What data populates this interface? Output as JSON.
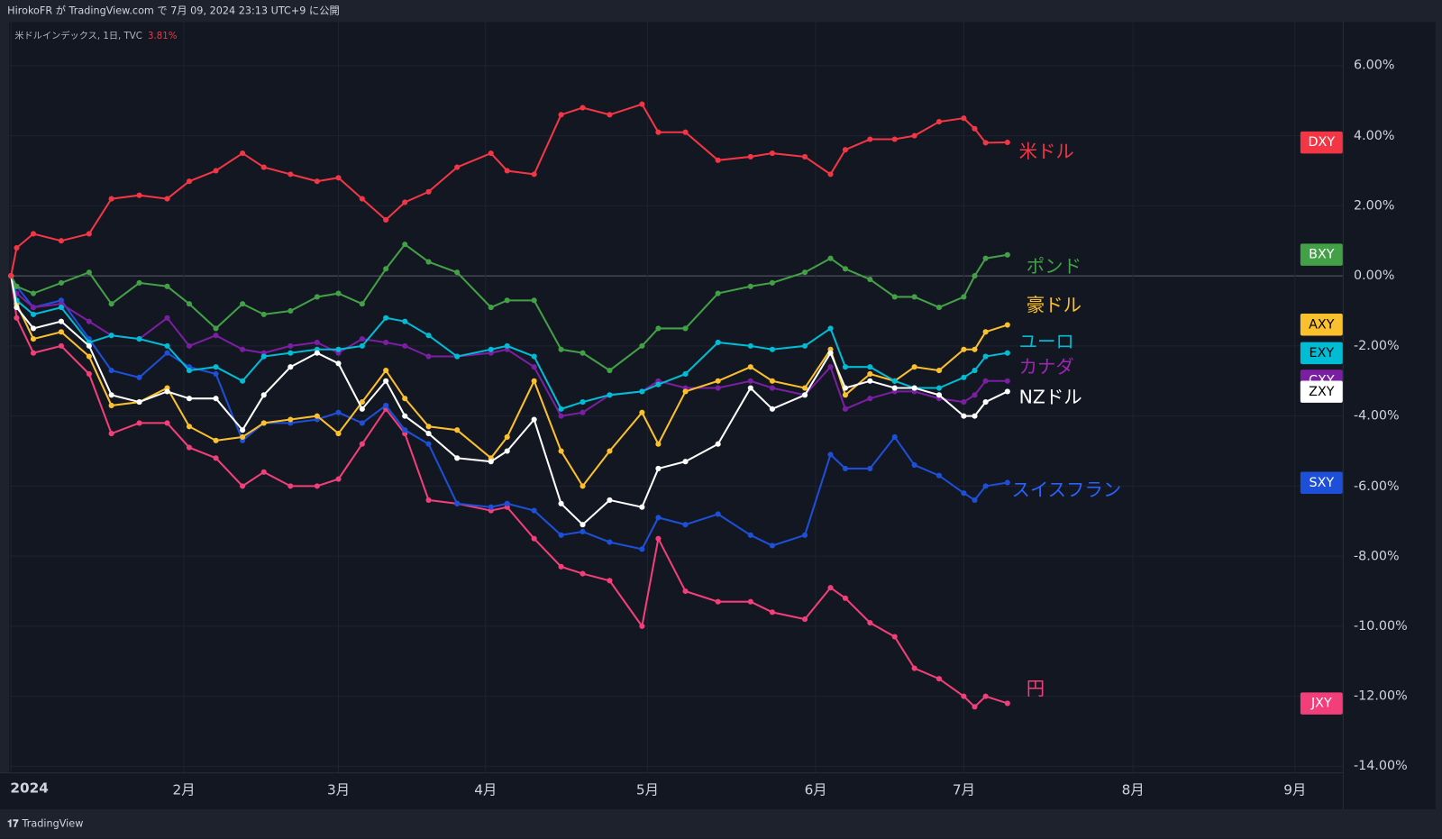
{
  "header": {
    "published": "HirokoFR が TradingView.com で 7月 09, 2024 23:13 UTC+9 に公開"
  },
  "legend": {
    "symbol": "米ドルインデックス, 1日, TVC",
    "change": "3.81%"
  },
  "footer": {
    "brand": "TradingView"
  },
  "chart_data": {
    "type": "line",
    "title": "米ドルインデックス, 1日, TVC",
    "xlabel": "",
    "ylabel": "%",
    "ylim": [
      -14.5,
      7
    ],
    "grid": true,
    "y_ticks": [
      "6.00%",
      "4.00%",
      "2.00%",
      "0.00%",
      "-2.00%",
      "-4.00%",
      "-6.00%",
      "-8.00%",
      "-10.00%",
      "-12.00%",
      "-14.00%"
    ],
    "x_ticks": [
      {
        "label": "2024",
        "date": "2024-01-01"
      },
      {
        "label": "2月",
        "date": "2024-02-01"
      },
      {
        "label": "3月",
        "date": "2024-03-01"
      },
      {
        "label": "4月",
        "date": "2024-04-01"
      },
      {
        "label": "5月",
        "date": "2024-05-01"
      },
      {
        "label": "6月",
        "date": "2024-06-01"
      },
      {
        "label": "7月",
        "date": "2024-07-01"
      },
      {
        "label": "8月",
        "date": "2024-08-01"
      },
      {
        "label": "9月",
        "date": "2024-09-01"
      }
    ],
    "x": [
      "2024-01-01",
      "2024-01-02",
      "2024-01-05",
      "2024-01-10",
      "2024-01-15",
      "2024-01-19",
      "2024-01-24",
      "2024-01-29",
      "2024-02-02",
      "2024-02-07",
      "2024-02-12",
      "2024-02-16",
      "2024-02-21",
      "2024-02-26",
      "2024-03-01",
      "2024-03-06",
      "2024-03-11",
      "2024-03-15",
      "2024-03-20",
      "2024-03-26",
      "2024-04-02",
      "2024-04-05",
      "2024-04-10",
      "2024-04-15",
      "2024-04-19",
      "2024-04-24",
      "2024-04-30",
      "2024-05-03",
      "2024-05-08",
      "2024-05-14",
      "2024-05-20",
      "2024-05-24",
      "2024-05-30",
      "2024-06-04",
      "2024-06-07",
      "2024-06-12",
      "2024-06-17",
      "2024-06-21",
      "2024-06-26",
      "2024-07-01",
      "2024-07-03",
      "2024-07-05",
      "2024-07-09"
    ],
    "series": [
      {
        "ticker": "DXY",
        "name": "米ドル",
        "color": "#f23645",
        "values": [
          0,
          0.8,
          1.2,
          1.0,
          1.2,
          2.2,
          2.3,
          2.2,
          2.7,
          3.0,
          3.5,
          3.1,
          2.9,
          2.7,
          2.8,
          2.2,
          1.6,
          2.1,
          2.4,
          3.1,
          3.5,
          3.0,
          2.9,
          4.6,
          4.8,
          4.6,
          4.9,
          4.1,
          4.1,
          3.3,
          3.4,
          3.5,
          3.4,
          2.9,
          3.6,
          3.9,
          3.9,
          4.0,
          4.4,
          4.5,
          4.2,
          3.8,
          3.81
        ]
      },
      {
        "ticker": "BXY",
        "name": "ポンド",
        "color": "#43a047",
        "values": [
          0,
          -0.3,
          -0.5,
          -0.2,
          0.1,
          -0.8,
          -0.2,
          -0.3,
          -0.8,
          -1.5,
          -0.8,
          -1.1,
          -1.0,
          -0.6,
          -0.5,
          -0.8,
          0.2,
          0.9,
          0.4,
          0.1,
          -0.9,
          -0.7,
          -0.7,
          -2.1,
          -2.2,
          -2.7,
          -2.0,
          -1.5,
          -1.5,
          -0.5,
          -0.3,
          -0.2,
          0.1,
          0.5,
          0.2,
          -0.1,
          -0.6,
          -0.6,
          -0.9,
          -0.6,
          0.0,
          0.5,
          0.6
        ]
      },
      {
        "ticker": "AXY",
        "name": "豪ドル",
        "color": "#fbc02d",
        "values": [
          0,
          -0.8,
          -1.8,
          -1.6,
          -2.3,
          -3.7,
          -3.6,
          -3.2,
          -4.3,
          -4.7,
          -4.6,
          -4.2,
          -4.1,
          -4.0,
          -4.5,
          -3.6,
          -2.7,
          -3.5,
          -4.3,
          -4.4,
          -5.2,
          -4.6,
          -3.0,
          -5.0,
          -6.0,
          -5.0,
          -3.9,
          -4.8,
          -3.3,
          -3.0,
          -2.6,
          -3.0,
          -3.2,
          -2.1,
          -3.4,
          -2.8,
          -3.0,
          -2.6,
          -2.7,
          -2.1,
          -2.1,
          -1.6,
          -1.4
        ]
      },
      {
        "ticker": "EXY",
        "name": "ユーロ",
        "color": "#00bcd4",
        "values": [
          0,
          -0.7,
          -1.1,
          -0.9,
          -1.9,
          -1.7,
          -1.8,
          -2.0,
          -2.7,
          -2.6,
          -3.0,
          -2.3,
          -2.2,
          -2.1,
          -2.1,
          -2.0,
          -1.2,
          -1.3,
          -1.7,
          -2.3,
          -2.1,
          -2.0,
          -2.3,
          -3.8,
          -3.6,
          -3.4,
          -3.3,
          -3.1,
          -2.8,
          -1.9,
          -2.0,
          -2.1,
          -2.0,
          -1.5,
          -2.6,
          -2.6,
          -3.0,
          -3.2,
          -3.2,
          -2.9,
          -2.7,
          -2.3,
          -2.2
        ]
      },
      {
        "ticker": "CXY",
        "name": "カナダ",
        "color": "#7b1fa2",
        "values": [
          0,
          -0.5,
          -0.9,
          -0.8,
          -1.3,
          -1.7,
          -1.8,
          -1.2,
          -2.0,
          -1.7,
          -2.1,
          -2.2,
          -2.0,
          -1.9,
          -2.2,
          -1.8,
          -1.9,
          -2.0,
          -2.3,
          -2.3,
          -2.2,
          -2.1,
          -2.6,
          -4.0,
          -3.9,
          -3.4,
          -3.3,
          -3.0,
          -3.2,
          -3.2,
          -3.0,
          -3.2,
          -3.4,
          -2.6,
          -3.8,
          -3.5,
          -3.3,
          -3.3,
          -3.5,
          -3.6,
          -3.4,
          -3.0,
          -3.0
        ]
      },
      {
        "ticker": "ZXY",
        "name": "NZドル",
        "color": "#ffffff",
        "values": [
          0,
          -0.9,
          -1.5,
          -1.3,
          -2.0,
          -3.4,
          -3.6,
          -3.3,
          -3.5,
          -3.5,
          -4.4,
          -3.4,
          -2.6,
          -2.2,
          -2.5,
          -3.8,
          -3.0,
          -4.0,
          -4.5,
          -5.2,
          -5.3,
          -5.0,
          -4.1,
          -6.5,
          -7.1,
          -6.4,
          -6.6,
          -5.5,
          -5.3,
          -4.8,
          -3.2,
          -3.8,
          -3.4,
          -2.2,
          -3.2,
          -3.0,
          -3.2,
          -3.2,
          -3.4,
          -4.0,
          -4.0,
          -3.6,
          -3.3
        ]
      },
      {
        "ticker": "SXY",
        "name": "スイスフラン",
        "color": "#1e4fd8",
        "values": [
          0,
          -0.3,
          -0.9,
          -0.7,
          -1.8,
          -2.7,
          -2.9,
          -2.2,
          -2.6,
          -2.8,
          -4.7,
          -4.2,
          -4.2,
          -4.1,
          -3.9,
          -4.2,
          -3.7,
          -4.4,
          -4.8,
          -6.5,
          -6.6,
          -6.5,
          -6.7,
          -7.4,
          -7.3,
          -7.6,
          -7.8,
          -6.9,
          -7.1,
          -6.8,
          -7.4,
          -7.7,
          -7.4,
          -5.1,
          -5.5,
          -5.5,
          -4.6,
          -5.4,
          -5.7,
          -6.2,
          -6.4,
          -6.0,
          -5.9
        ]
      },
      {
        "ticker": "JXY",
        "name": "円",
        "color": "#f23f7a",
        "values": [
          0,
          -1.2,
          -2.2,
          -2.0,
          -2.8,
          -4.5,
          -4.2,
          -4.2,
          -4.9,
          -5.2,
          -6.0,
          -5.6,
          -6.0,
          -6.0,
          -5.8,
          -4.8,
          -3.8,
          -4.5,
          -6.4,
          -6.5,
          -6.7,
          -6.6,
          -7.5,
          -8.3,
          -8.5,
          -8.7,
          -10.0,
          -7.5,
          -9.0,
          -9.3,
          -9.3,
          -9.6,
          -9.8,
          -8.9,
          -9.2,
          -9.9,
          -10.3,
          -11.2,
          -11.5,
          -12.0,
          -12.3,
          -12.0,
          -12.2
        ]
      }
    ]
  }
}
